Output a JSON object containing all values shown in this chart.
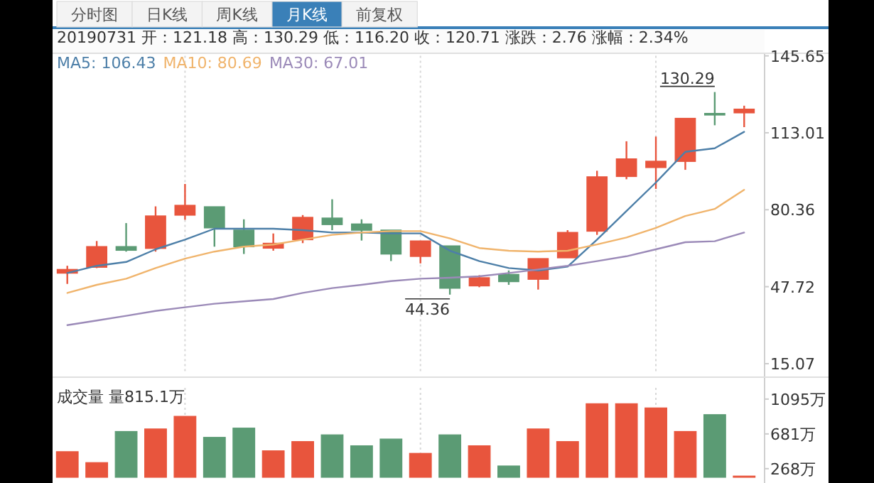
{
  "chart_data": [
    {
      "type": "candlestick",
      "title": "20190731 开：121.18 高：130.29 低：116.20 收：120.71 涨跌：2.76 涨幅：2.34%",
      "annotations": [
        "分时图",
        "日K线",
        "周K线",
        "月K线",
        "前复权",
        "130.29",
        "44.36"
      ],
      "categories": [
        null,
        null,
        null,
        null,
        null,
        null,
        null,
        null,
        null,
        null,
        null,
        null,
        null,
        null,
        null,
        null,
        null,
        null,
        null,
        null,
        null,
        null,
        null,
        null
      ],
      "ohlc": [
        [
          53.5,
          56.6,
          48.9,
          55.0
        ],
        [
          56.0,
          67.1,
          55.6,
          64.7
        ],
        [
          64.7,
          74.7,
          62.6,
          63.2
        ],
        [
          64.0,
          81.8,
          62.6,
          77.7
        ],
        [
          78.1,
          91.3,
          76.1,
          82.2
        ],
        [
          81.6,
          81.6,
          64.7,
          72.7
        ],
        [
          71.7,
          76.3,
          61.6,
          64.7
        ],
        [
          64.1,
          70.3,
          63.0,
          66.1
        ],
        [
          67.7,
          78.1,
          66.2,
          77.1
        ],
        [
          76.8,
          84.8,
          71.7,
          74.1
        ],
        [
          74.3,
          76.3,
          67.3,
          71.7
        ],
        [
          71.7,
          71.7,
          58.6,
          61.6
        ],
        [
          60.6,
          67.1,
          57.6,
          67.1
        ],
        [
          65.0,
          65.0,
          44.36,
          47.1
        ],
        [
          48.1,
          52.6,
          47.5,
          51.5
        ],
        [
          52.9,
          54.6,
          48.5,
          49.9
        ],
        [
          50.9,
          59.6,
          46.5,
          59.6
        ],
        [
          60.0,
          71.7,
          60.0,
          70.7
        ],
        [
          71.3,
          96.9,
          69.7,
          94.3
        ],
        [
          94.5,
          109.4,
          93.3,
          101.9
        ],
        [
          98.3,
          111.4,
          89.2,
          100.9
        ],
        [
          100.9,
          119.1,
          97.3,
          119.1
        ],
        [
          121.18,
          130.29,
          116.2,
          120.71
        ],
        [
          121.5,
          124.5,
          115.4,
          123.0
        ]
      ],
      "colors": [
        "#e8553d",
        "#e8553d",
        "#5b9b74",
        "#e8553d",
        "#e8553d",
        "#5b9b74",
        "#5b9b74",
        "#e8553d",
        "#e8553d",
        "#5b9b74",
        "#5b9b74",
        "#5b9b74",
        "#e8553d",
        "#5b9b74",
        "#e8553d",
        "#5b9b74",
        "#e8553d",
        "#e8553d",
        "#e8553d",
        "#e8553d",
        "#e8553d",
        "#e8553d",
        "#5b9b74",
        "#e8553d"
      ],
      "series": [
        {
          "type": "line",
          "name": "MA5: 106.43",
          "color": "#4d7fa8",
          "values": [
            53.5,
            56.6,
            58.2,
            63.6,
            67.7,
            72.3,
            72.3,
            72.3,
            71.7,
            70.7,
            70.7,
            70.3,
            70.3,
            63.0,
            58.6,
            55.6,
            54.6,
            56.2,
            67.7,
            79.8,
            91.9,
            104.9,
            106.4,
            113.4
          ]
        },
        {
          "type": "line",
          "name": "MA10: 80.69",
          "color": "#f0b46c",
          "values": [
            45.1,
            48.5,
            51.1,
            55.6,
            59.6,
            62.6,
            64.7,
            65.6,
            67.7,
            69.7,
            70.7,
            71.3,
            71.3,
            68.2,
            64.1,
            63.0,
            62.6,
            63.0,
            65.6,
            68.6,
            72.7,
            77.7,
            80.7,
            88.8
          ]
        },
        {
          "type": "line",
          "name": "MA30: 67.01",
          "color": "#9b8ab8",
          "values": [
            31.4,
            33.4,
            35.4,
            37.4,
            39.0,
            40.5,
            41.5,
            42.5,
            45.1,
            47.1,
            48.5,
            50.1,
            51.1,
            51.5,
            52.1,
            53.5,
            55.0,
            56.6,
            58.6,
            60.6,
            63.6,
            66.6,
            67.0,
            70.7
          ]
        }
      ],
      "ylim": [
        15.07,
        145.65
      ],
      "yticks": [
        145.65,
        113.01,
        80.36,
        47.72,
        15.07
      ],
      "legend": "top left",
      "tick_labels": "y",
      "grid": "x"
    },
    {
      "type": "bar",
      "title": "成交量 量815.1万",
      "categories": [
        null,
        null,
        null,
        null,
        null,
        null,
        null,
        null,
        null,
        null,
        null,
        null,
        null,
        null,
        null,
        null,
        null,
        null,
        null,
        null,
        null,
        null,
        null,
        null
      ],
      "values": [
        470,
        340,
        710,
        740,
        890,
        640,
        750,
        480,
        590,
        670,
        540,
        620,
        450,
        670,
        540,
        300,
        740,
        590,
        1040,
        1040,
        990,
        710,
        910,
        180
      ],
      "colors": [
        "#e8553d",
        "#e8553d",
        "#5b9b74",
        "#e8553d",
        "#e8553d",
        "#5b9b74",
        "#5b9b74",
        "#e8553d",
        "#e8553d",
        "#5b9b74",
        "#5b9b74",
        "#5b9b74",
        "#e8553d",
        "#5b9b74",
        "#e8553d",
        "#5b9b74",
        "#e8553d",
        "#e8553d",
        "#e8553d",
        "#e8553d",
        "#e8553d",
        "#e8553d",
        "#5b9b74",
        "#e8553d"
      ],
      "ylim": [
        165,
        1195
      ],
      "yticks": [
        {
          "value": 1095,
          "label": "1095万"
        },
        {
          "value": 681,
          "label": "681万"
        },
        {
          "value": 268,
          "label": "268万"
        }
      ],
      "tick_labels": "y",
      "grid": "x"
    }
  ]
}
